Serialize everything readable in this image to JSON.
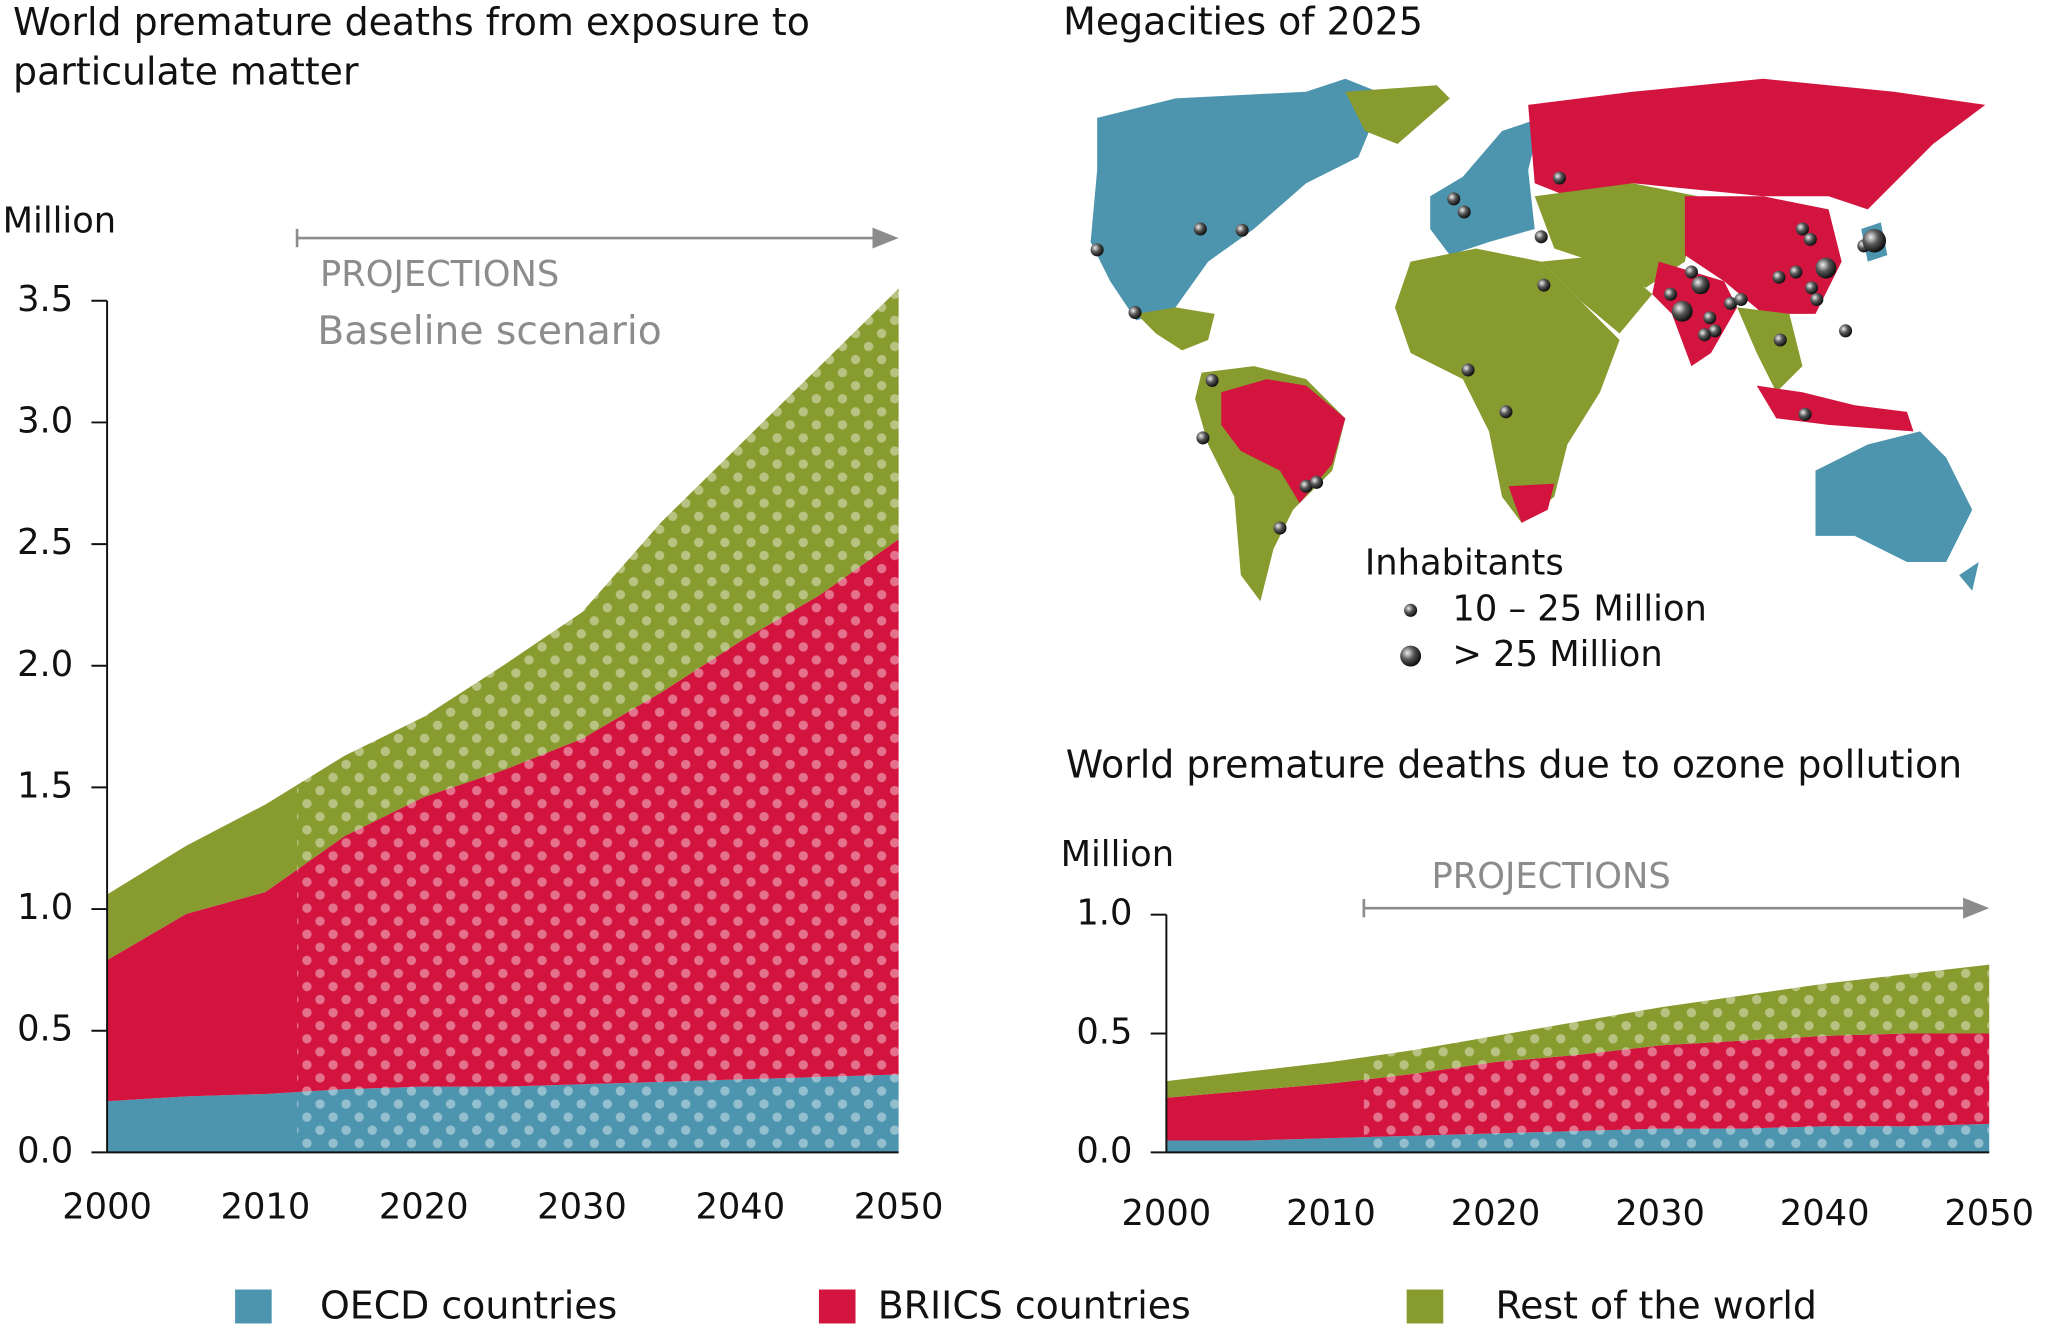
{
  "chart_data": [
    {
      "type": "area",
      "title": "World premature deaths from exposure to particulate matter",
      "y_label": "Million",
      "annotations": [
        "PROJECTIONS",
        "Baseline scenario"
      ],
      "projection_start": 2012,
      "x": [
        2000,
        2005,
        2010,
        2015,
        2020,
        2025,
        2030,
        2035,
        2040,
        2045,
        2050
      ],
      "xlim": [
        2000,
        2050
      ],
      "xticks": [
        2000,
        2010,
        2020,
        2030,
        2040,
        2050
      ],
      "ylim": [
        0,
        3.5
      ],
      "yticks": [
        {
          "value": 0,
          "label": "0.0"
        },
        0.5,
        {
          "value": 1,
          "label": "1.0"
        },
        1.5,
        {
          "value": 2,
          "label": "2.0"
        },
        2.5,
        {
          "value": 3,
          "label": "3.0"
        },
        3.5
      ],
      "series": [
        {
          "name": "OECD countries",
          "color": "#4d94ae",
          "values": [
            0.21,
            0.23,
            0.24,
            0.26,
            0.27,
            0.27,
            0.28,
            0.29,
            0.3,
            0.31,
            0.32
          ]
        },
        {
          "name": "BRIICS countries",
          "color": "#d2143f",
          "values": [
            0.58,
            0.75,
            0.83,
            1.04,
            1.19,
            1.3,
            1.42,
            1.6,
            1.8,
            1.98,
            2.2
          ]
        },
        {
          "name": "Rest of the world",
          "color": "#889b2f",
          "values": [
            0.27,
            0.28,
            0.36,
            0.33,
            0.33,
            0.43,
            0.52,
            0.7,
            0.81,
            0.94,
            1.03
          ]
        }
      ]
    },
    {
      "type": "area",
      "title": "World premature deaths due to ozone pollution",
      "y_label": "Million",
      "annotations": [
        "PROJECTIONS"
      ],
      "projection_start": 2012,
      "x": [
        2000,
        2005,
        2010,
        2015,
        2020,
        2025,
        2030,
        2035,
        2040,
        2045,
        2050
      ],
      "xlim": [
        2000,
        2050
      ],
      "xticks": [
        2000,
        2010,
        2020,
        2030,
        2040,
        2050
      ],
      "ylim": [
        0,
        1
      ],
      "yticks": [
        {
          "value": 0,
          "label": "0.0"
        },
        0.5,
        {
          "value": 1,
          "label": "1.0"
        }
      ],
      "series": [
        {
          "color": "#4d94ae",
          "values": [
            0.05,
            0.05,
            0.06,
            0.07,
            0.08,
            0.09,
            0.1,
            0.1,
            0.11,
            0.11,
            0.12
          ]
        },
        {
          "color": "#d2143f",
          "values": [
            0.18,
            0.21,
            0.23,
            0.26,
            0.3,
            0.32,
            0.35,
            0.37,
            0.38,
            0.39,
            0.38
          ]
        },
        {
          "color": "#889b2f",
          "values": [
            0.07,
            0.08,
            0.09,
            0.1,
            0.11,
            0.14,
            0.16,
            0.19,
            0.22,
            0.25,
            0.29
          ]
        }
      ]
    }
  ],
  "map": {
    "title": "Megacities of 2025",
    "legend_title": "Inhabitants",
    "legend": [
      "10 – 25 Million",
      "> 25 Million"
    ]
  }
}
